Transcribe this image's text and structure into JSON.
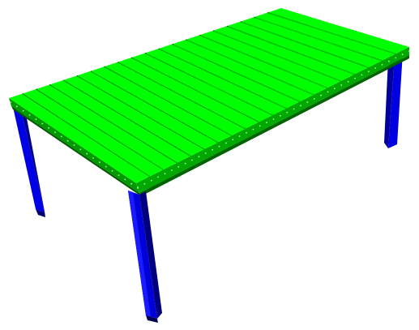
{
  "scene": {
    "subject": "table-3d-render",
    "colors": {
      "background": "#ffffff",
      "top_light": "#00ff00",
      "top_mid": "#00e600",
      "apron_light": "#00b300",
      "apron_dark": "#006b00",
      "slat_gap": "#0b3b0b",
      "leg_light": "#2020ff",
      "leg_mid": "#0000c8",
      "leg_dark": "#00007a",
      "leg_shadow": "#000050",
      "bolt": "#9dff9d"
    },
    "slat_count": 20,
    "leg_count": 4
  }
}
